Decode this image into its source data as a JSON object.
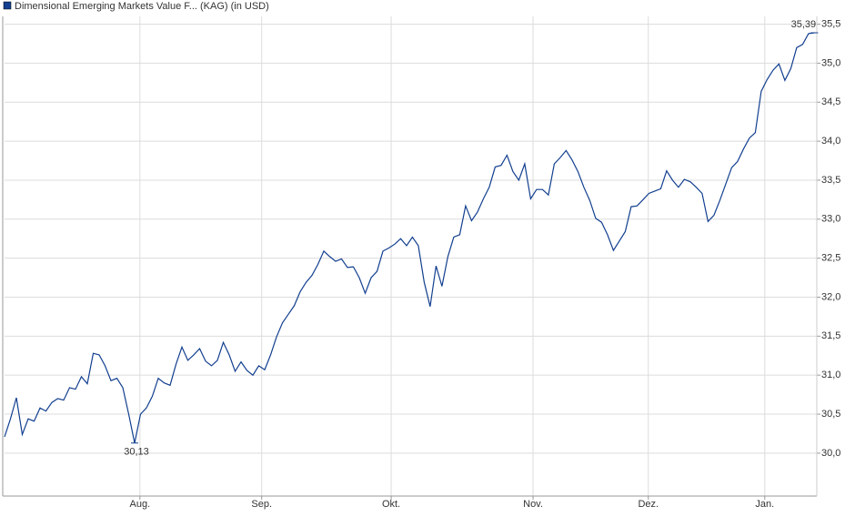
{
  "chart_data": {
    "type": "line",
    "series": [
      {
        "name": "Dimensional Emerging Markets Value F... (KAG) (in USD)",
        "color": "#123f8f",
        "values": [
          30.21,
          30.44,
          30.71,
          30.24,
          30.44,
          30.41,
          30.58,
          30.54,
          30.65,
          30.7,
          30.68,
          30.84,
          30.82,
          30.98,
          30.89,
          31.28,
          31.26,
          31.12,
          30.93,
          30.96,
          30.84,
          30.5,
          30.13,
          30.5,
          30.58,
          30.73,
          30.96,
          30.9,
          30.87,
          31.14,
          31.36,
          31.19,
          31.26,
          31.34,
          31.18,
          31.12,
          31.19,
          31.42,
          31.26,
          31.05,
          31.17,
          31.06,
          31.0,
          31.12,
          31.07,
          31.26,
          31.49,
          31.67,
          31.78,
          31.89,
          32.07,
          32.19,
          32.28,
          32.42,
          32.59,
          32.52,
          32.46,
          32.49,
          32.38,
          32.39,
          32.25,
          32.05,
          32.25,
          32.33,
          32.59,
          32.63,
          32.68,
          32.75,
          32.66,
          32.77,
          32.66,
          32.19,
          31.88,
          32.4,
          32.14,
          32.52,
          32.77,
          32.8,
          33.17,
          32.98,
          33.09,
          33.26,
          33.41,
          33.67,
          33.69,
          33.82,
          33.61,
          33.5,
          33.71,
          33.26,
          33.38,
          33.38,
          33.31,
          33.71,
          33.79,
          33.88,
          33.76,
          33.61,
          33.41,
          33.24,
          33.01,
          32.96,
          32.8,
          32.6,
          32.72,
          32.84,
          33.16,
          33.17,
          33.25,
          33.33,
          33.36,
          33.39,
          33.62,
          33.5,
          33.41,
          33.51,
          33.48,
          33.41,
          33.33,
          32.97,
          33.05,
          33.24,
          33.45,
          33.66,
          33.74,
          33.9,
          34.04,
          34.11,
          34.64,
          34.79,
          34.91,
          34.99,
          34.78,
          34.93,
          35.2,
          35.24,
          35.38,
          35.39
        ]
      }
    ],
    "annotations": [
      {
        "x": 137,
        "value": 35.39,
        "label": "35,39"
      },
      {
        "x": 22,
        "value": 30.13,
        "label": "30,13"
      }
    ],
    "xlim": [
      0,
      137.4
    ],
    "xticks": [
      {
        "value": 22.9,
        "label": "Aug."
      },
      {
        "value": 43.5,
        "label": "Sep."
      },
      {
        "value": 65.4,
        "label": "Okt."
      },
      {
        "value": 89.4,
        "label": "Nov."
      },
      {
        "value": 108.9,
        "label": "Dez."
      },
      {
        "value": 128.6,
        "label": "Jan."
      }
    ],
    "ylim": [
      29.45,
      35.6
    ],
    "yticks": [
      {
        "value": 30.0,
        "label": "30,0"
      },
      {
        "value": 30.5,
        "label": "30,5"
      },
      {
        "value": 31.0,
        "label": "31,0"
      },
      {
        "value": 31.5,
        "label": "31,5"
      },
      {
        "value": 32.0,
        "label": "32,0"
      },
      {
        "value": 32.5,
        "label": "32,5"
      },
      {
        "value": 33.0,
        "label": "33,0"
      },
      {
        "value": 33.5,
        "label": "33,5"
      },
      {
        "value": 34.0,
        "label": "34,0"
      },
      {
        "value": 34.5,
        "label": "34,5"
      },
      {
        "value": 35.0,
        "label": "35,0"
      },
      {
        "value": 35.5,
        "label": "35,5"
      }
    ],
    "grid": true
  }
}
